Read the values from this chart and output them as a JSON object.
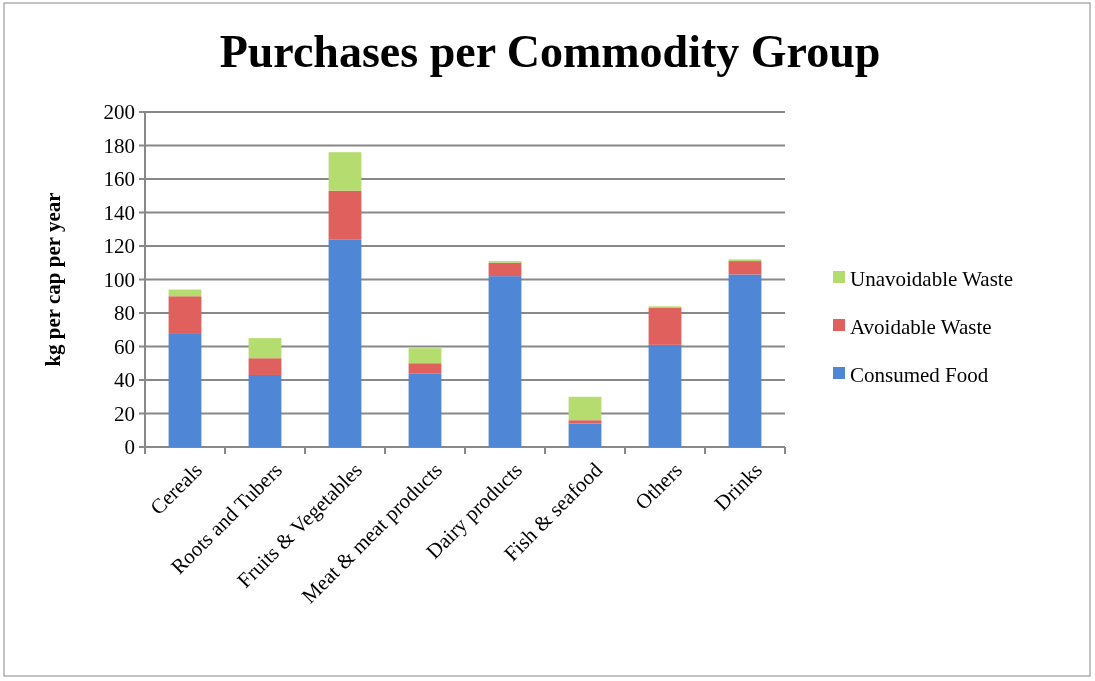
{
  "chart_data": {
    "type": "bar",
    "title": "Purchases per Commodity Group",
    "ylabel": "kg per cap per year",
    "categories": [
      "Cereals",
      "Roots and Tubers",
      "Fruits & Vegetables",
      "Meat & meat products",
      "Dairy products",
      "Fish & seafood",
      "Others",
      "Drinks"
    ],
    "series": [
      {
        "name": "Consumed Food",
        "color": "#4f86d6",
        "values": [
          68,
          43,
          124,
          44,
          102,
          14,
          61,
          103
        ]
      },
      {
        "name": "Avoidable Waste",
        "color": "#e0605e",
        "values": [
          22,
          10,
          29,
          6,
          8,
          2,
          22,
          8
        ]
      },
      {
        "name": "Unavoidable Waste",
        "color": "#b5dc6e",
        "values": [
          4,
          12,
          23,
          9,
          1,
          14,
          1,
          1
        ]
      }
    ],
    "stacked": true,
    "ylim": [
      0,
      200
    ],
    "yticks": [
      0,
      20,
      40,
      60,
      80,
      100,
      120,
      140,
      160,
      180,
      200
    ],
    "grid": "y",
    "legend": "right"
  }
}
